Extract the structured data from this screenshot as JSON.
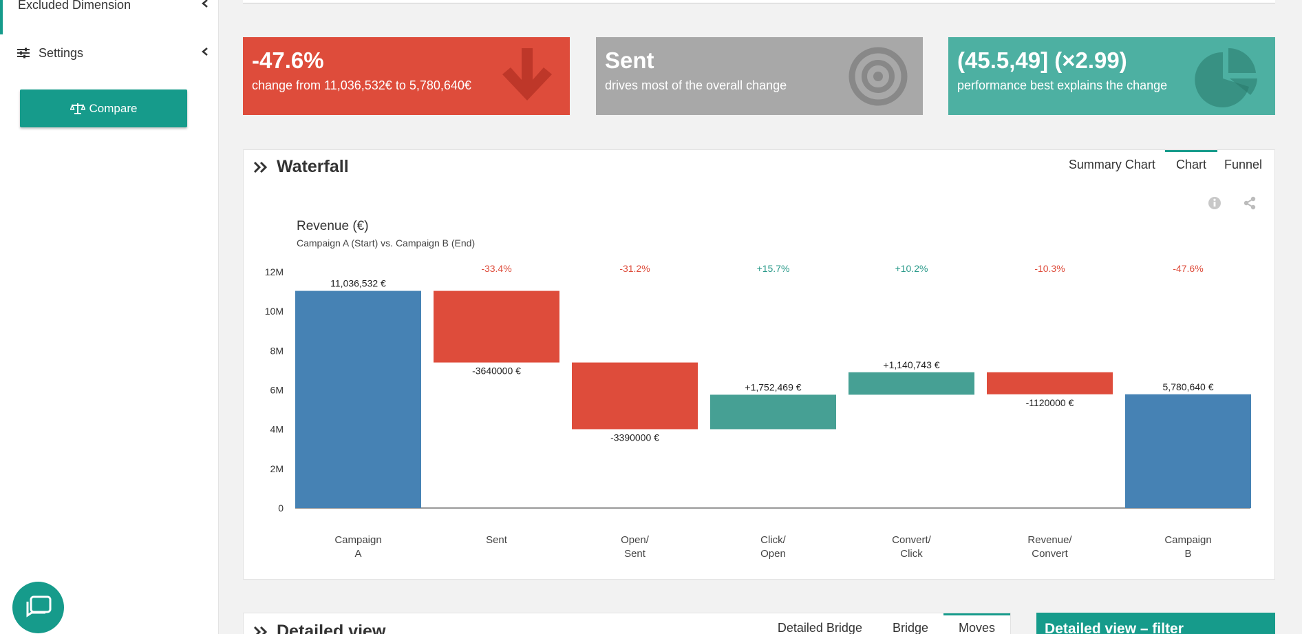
{
  "sidebar": {
    "excluded_label": "Excluded Dimension",
    "settings_label": "Settings",
    "compare_label": "Compare"
  },
  "kpis": [
    {
      "big": "-47.6%",
      "small": "change from 11,036,532€ to 5,780,640€",
      "color": "#de4c3b",
      "icon": "arrow-down-icon"
    },
    {
      "big": "Sent",
      "small": "drives most of the overall change",
      "color": "#a8a8a8",
      "icon": "target-icon"
    },
    {
      "big": "(45.5,49] (×2.99)",
      "small": "performance best explains the change",
      "color": "#4db0a2",
      "icon": "pie-chart-icon"
    }
  ],
  "waterfall": {
    "title": "Waterfall",
    "tabs": [
      "Summary Chart",
      "Chart",
      "Funnel"
    ],
    "active_tab": "Chart"
  },
  "chart_data": {
    "type": "bar",
    "subtype": "waterfall",
    "title": "Revenue (€)",
    "subtitle": "Campaign A (Start) vs. Campaign B (End)",
    "ylim": [
      0,
      12000000
    ],
    "yticks": [
      "0",
      "2M",
      "4M",
      "6M",
      "8M",
      "10M",
      "12M"
    ],
    "ytick_values": [
      0,
      2000000,
      4000000,
      6000000,
      8000000,
      10000000,
      12000000
    ],
    "categories": [
      [
        "Campaign",
        "A"
      ],
      [
        "Sent"
      ],
      [
        "Open/",
        "Sent"
      ],
      [
        "Click/",
        "Open"
      ],
      [
        "Convert/",
        "Click"
      ],
      [
        "Revenue/",
        "Convert"
      ],
      [
        "Campaign",
        "B"
      ]
    ],
    "bars": [
      {
        "start": 0,
        "end": 11036532,
        "label": "11,036,532 €",
        "pct": "",
        "kind": "total"
      },
      {
        "start": 11036532,
        "end": 7396532,
        "label": "-3640000 €",
        "pct": "-33.4%",
        "kind": "decrease"
      },
      {
        "start": 7396532,
        "end": 4006532,
        "label": "-3390000 €",
        "pct": "-31.2%",
        "kind": "decrease"
      },
      {
        "start": 4006532,
        "end": 5759001,
        "label": "+1,752,469 €",
        "pct": "+15.7%",
        "kind": "increase"
      },
      {
        "start": 5759001,
        "end": 6899744,
        "label": "+1,140,743 €",
        "pct": "+10.2%",
        "kind": "increase"
      },
      {
        "start": 6899744,
        "end": 5779744,
        "label": "-1120000 €",
        "pct": "-10.3%",
        "kind": "decrease"
      },
      {
        "start": 0,
        "end": 5780640,
        "label": "5,780,640 €",
        "pct": "-47.6%",
        "kind": "total"
      }
    ],
    "colors": {
      "total": "#4682b4",
      "decrease": "#de4c3b",
      "increase": "#46a094",
      "pct_negative": "#de4c3b",
      "pct_positive": "#2a9a8a"
    }
  },
  "detailed": {
    "title": "Detailed view",
    "tabs": [
      "Detailed Bridge",
      "Bridge",
      "Moves"
    ],
    "active_tab": "Moves",
    "filter_title": "Detailed view – filter"
  }
}
